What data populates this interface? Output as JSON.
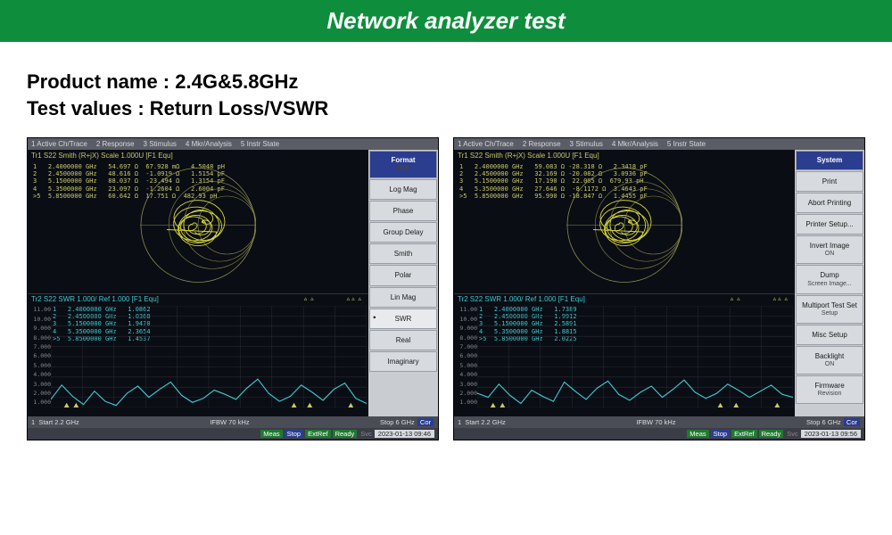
{
  "header": {
    "title": "Network analyzer test"
  },
  "info": {
    "product_label": "Product name :",
    "product_value": "2.4G&5.8GHz",
    "test_label": "Test values :",
    "test_value": "Return Loss/VSWR"
  },
  "menubar": [
    "1 Active Ch/Trace",
    "2 Response",
    "3 Stimulus",
    "4 Mkr/Analysis",
    "5 Instr State"
  ],
  "smith_trace_label": "Tr1 S22 Smith (R+jX)  Scale 1.000U  [F1 Equ]",
  "swr_trace_label": "Tr2 S22 SWR 1.000/ Ref 1.000 [F1 Equ]",
  "colors": {
    "banner": "#0e8e3d",
    "analyzer_bg": "#0a0d14",
    "side_header": "#2b3d8f",
    "smith_trace": "#d6d63a",
    "smith_grid": "#8a8a4a",
    "swr_trace": "#3ec9d0",
    "grid": "#2a2d35"
  },
  "swr_yticks": [
    "11.00",
    "10.00",
    "9.000",
    "8.000",
    "7.000",
    "6.000",
    "5.000",
    "4.000",
    "3.000",
    "2.000",
    "1.000"
  ],
  "left_panel": {
    "side_header": "Format",
    "side_sub": "SWR",
    "buttons": [
      "Log Mag",
      "Phase",
      "Group Delay",
      "Smith",
      "Polar",
      "Lin Mag",
      "SWR",
      "Real",
      "Imaginary"
    ],
    "active": "SWR",
    "smith_markers": "1   2.4000000 GHz   54.697 Ω  67.928 mΩ   4.5048 pH\n2   2.4500000 GHz   48.616 Ω  -1.0919 Ω   1.5154 pF\n3   5.1500000 GHz   88.037 Ω  -23.494 Ω   1.3154 pF\n4   5.3500000 GHz   23.097 Ω  -1.2604 Ω   2.6004 pF\n>5  5.8500000 GHz   60.642 Ω  17.751 Ω  482.93 pH",
    "swr_markers": "1   2.4000000 GHz   1.0862\n2   2.4500000 GHz   1.0368\n3   5.1500000 GHz   1.9470\n4   5.3500000 GHz   2.3654\n>5  5.8500000 GHz   1.4537",
    "swr_points": [
      1.8,
      3.2,
      2.1,
      1.3,
      2.6,
      1.6,
      1.2,
      2.4,
      3.1,
      2.0,
      2.8,
      3.5,
      2.2,
      1.5,
      1.9,
      2.7,
      2.3,
      1.8,
      2.9,
      3.8,
      2.4,
      1.6,
      2.1,
      3.2,
      2.5,
      1.7,
      2.8,
      3.4,
      1.9,
      1.4
    ],
    "status": {
      "start": "Start 2.2 GHz",
      "ifbw": "IFBW 70 kHz",
      "stop": "Stop 6 GHz",
      "badges": [
        "Meas",
        "Stop",
        "ExtRef",
        "Ready"
      ],
      "date": "2023-01-13 09:46"
    }
  },
  "right_panel": {
    "side_header": "System",
    "buttons": [
      {
        "l": "Print"
      },
      {
        "l": "Abort Printing"
      },
      {
        "l": "Printer Setup..."
      },
      {
        "l": "Invert Image",
        "s": "ON"
      },
      {
        "l": "Dump",
        "s": "Screen Image..."
      },
      {
        "l": "Multiport Test Set",
        "s": "Setup"
      },
      {
        "l": "Misc Setup"
      },
      {
        "l": "Backlight",
        "s": "ON"
      },
      {
        "l": "Firmware",
        "s": "Revision"
      }
    ],
    "smith_markers": "1   2.4000000 GHz   59.083 Ω -28.318 Ω   2.3418 pF\n2   2.4500000 GHz   32.169 Ω -20.082 Ω   3.0936 pF\n3   5.1500000 GHz   17.190 Ω  22.005 Ω  679.93 pH\n4   5.3500000 GHz   27.646 Ω  -8.1172 Ω  3.4643 pF\n>5  5.8500000 GHz   95.990 Ω -18.847 Ω   1.4455 pF",
    "swr_markers": "1   2.4000000 GHz   1.7389\n2   2.4500000 GHz   1.9912\n3   5.1500000 GHz   2.5891\n4   5.3500000 GHz   1.8815\n>5  5.8500000 GHz   2.0225",
    "swr_points": [
      2.4,
      2.0,
      3.3,
      2.2,
      1.4,
      2.7,
      2.1,
      1.6,
      3.5,
      2.6,
      1.8,
      2.9,
      3.6,
      2.3,
      1.7,
      2.5,
      3.1,
      2.0,
      2.8,
      3.7,
      2.5,
      1.9,
      2.4,
      3.3,
      2.7,
      2.0,
      2.6,
      3.2,
      2.3,
      2.0
    ],
    "status": {
      "start": "Start 2.2 GHz",
      "ifbw": "IFBW 70 kHz",
      "stop": "Stop 6 GHz",
      "badges": [
        "Meas",
        "Stop",
        "ExtRef",
        "Ready"
      ],
      "date": "2023-01-13 09:56"
    }
  }
}
